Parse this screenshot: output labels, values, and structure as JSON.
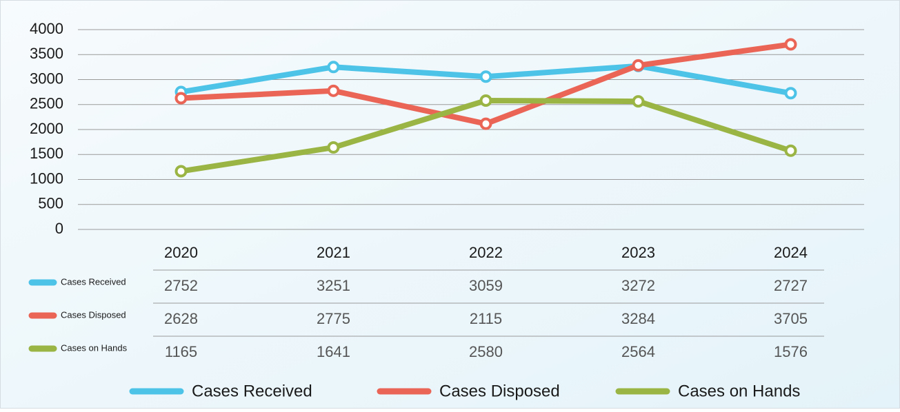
{
  "chart_data": {
    "type": "line",
    "categories": [
      "2020",
      "2021",
      "2022",
      "2023",
      "2024"
    ],
    "series": [
      {
        "name": "Cases Received",
        "color": "#4dc3e8",
        "values": [
          2752,
          3251,
          3059,
          3272,
          2727
        ]
      },
      {
        "name": "Cases Disposed",
        "color": "#eb6557",
        "values": [
          2628,
          2775,
          2115,
          3284,
          3705
        ]
      },
      {
        "name": "Cases on Hands",
        "color": "#9bb545",
        "values": [
          1165,
          1641,
          2580,
          2564,
          1576
        ]
      }
    ],
    "ylim": [
      0,
      4000
    ],
    "yticks": [
      0,
      500,
      1000,
      1500,
      2000,
      2500,
      3000,
      3500,
      4000
    ],
    "grid": true,
    "legend": "bottom",
    "data_table": true
  }
}
